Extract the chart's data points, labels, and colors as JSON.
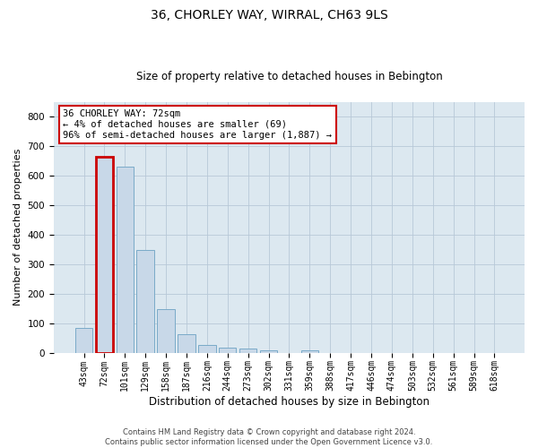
{
  "title": "36, CHORLEY WAY, WIRRAL, CH63 9LS",
  "subtitle": "Size of property relative to detached houses in Bebington",
  "xlabel": "Distribution of detached houses by size in Bebington",
  "ylabel": "Number of detached properties",
  "footer_line1": "Contains HM Land Registry data © Crown copyright and database right 2024.",
  "footer_line2": "Contains public sector information licensed under the Open Government Licence v3.0.",
  "annotation_title": "36 CHORLEY WAY: 72sqm",
  "annotation_line1": "← 4% of detached houses are smaller (69)",
  "annotation_line2": "96% of semi-detached houses are larger (1,887) →",
  "bar_labels": [
    "43sqm",
    "72sqm",
    "101sqm",
    "129sqm",
    "158sqm",
    "187sqm",
    "216sqm",
    "244sqm",
    "273sqm",
    "302sqm",
    "331sqm",
    "359sqm",
    "388sqm",
    "417sqm",
    "446sqm",
    "474sqm",
    "503sqm",
    "532sqm",
    "561sqm",
    "589sqm",
    "618sqm"
  ],
  "bar_values": [
    85,
    665,
    630,
    347,
    147,
    63,
    25,
    18,
    14,
    7,
    0,
    8,
    0,
    0,
    0,
    0,
    0,
    0,
    0,
    0,
    0
  ],
  "bar_color": "#c8d8e8",
  "bar_edge_color": "#7aaac8",
  "highlight_bar_index": 1,
  "highlight_edge_color": "#cc0000",
  "annotation_box_edge_color": "#cc0000",
  "ax_facecolor": "#dce8f0",
  "fig_facecolor": "#ffffff",
  "grid_color": "#b8c8d8",
  "ylim": [
    0,
    850
  ],
  "yticks": [
    0,
    100,
    200,
    300,
    400,
    500,
    600,
    700,
    800
  ],
  "title_fontsize": 10,
  "subtitle_fontsize": 8.5,
  "ylabel_fontsize": 8,
  "xlabel_fontsize": 8.5,
  "tick_fontsize": 7,
  "annotation_fontsize": 7.5,
  "footer_fontsize": 6
}
